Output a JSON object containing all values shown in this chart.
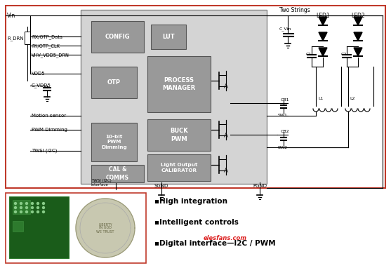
{
  "bg_color": "#ffffff",
  "outer_border_color": "#c0392b",
  "fig_width": 5.57,
  "fig_height": 3.82,
  "ic_bg": "#d4d4d4",
  "block_fc": "#999999",
  "block_ec": "#555555",
  "block_text_color": "#ffffff",
  "line_color": "#000000",
  "bottom_text": [
    "▪High integration",
    "▪Intelligent controls",
    "▪Digital interface—I2C / PWM"
  ],
  "watermark": "elesfans.com",
  "watermark_color": "#dd2222",
  "two_strings": "Two Strings",
  "led1": "LED1",
  "led2": "LED2"
}
